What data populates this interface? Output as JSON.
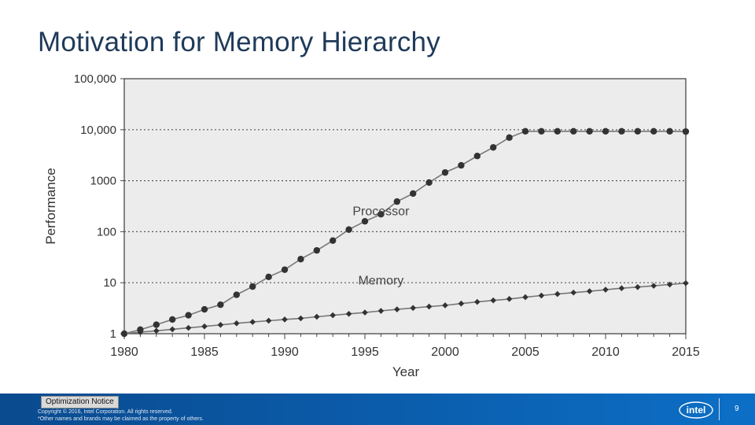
{
  "slide": {
    "title": "Motivation for Memory Hierarchy",
    "page_number": "9"
  },
  "footer": {
    "notice": "Optimization Notice",
    "copyright_line1": "Copyright © 2016, Intel Corporation. All rights reserved.",
    "copyright_line2": "*Other names and brands may be claimed as the property of others.",
    "logo_text": "intel"
  },
  "colors": {
    "footer_blue": "#0b5aa8",
    "title_color": "#1f3a5a",
    "plot_background": "#ececec",
    "series_color": "#333333"
  },
  "chart_data": {
    "type": "line",
    "xlabel": "Year",
    "ylabel": "Performance",
    "xlim": [
      1980,
      2015
    ],
    "ylim": [
      1,
      100000
    ],
    "yscale": "log",
    "grid": "horizontal dotted",
    "x_ticks": [
      1980,
      1985,
      1990,
      1995,
      2000,
      2005,
      2010,
      2015
    ],
    "y_ticks": [
      {
        "value": 1,
        "label": "1"
      },
      {
        "value": 10,
        "label": "10"
      },
      {
        "value": 100,
        "label": "100"
      },
      {
        "value": 1000,
        "label": "1000"
      },
      {
        "value": 10000,
        "label": "10,000"
      },
      {
        "value": 100000,
        "label": "100,000"
      }
    ],
    "series": [
      {
        "name": "Processor",
        "label_at": [
          1996,
          260
        ],
        "marker": "circle",
        "x": [
          1980,
          1981,
          1982,
          1983,
          1984,
          1985,
          1986,
          1987,
          1988,
          1989,
          1990,
          1991,
          1992,
          1993,
          1994,
          1995,
          1996,
          1997,
          1998,
          1999,
          2000,
          2001,
          2002,
          2003,
          2004,
          2005,
          2006,
          2007,
          2008,
          2009,
          2010,
          2011,
          2012,
          2013,
          2014,
          2015
        ],
        "y": [
          1,
          1.2,
          1.5,
          1.9,
          2.3,
          3.0,
          3.7,
          5.8,
          8.4,
          13,
          18,
          29,
          43,
          67,
          110,
          160,
          220,
          390,
          560,
          920,
          1450,
          2000,
          3050,
          4500,
          7000,
          9300,
          9300,
          9300,
          9300,
          9300,
          9300,
          9300,
          9300,
          9300,
          9300,
          9200
        ]
      },
      {
        "name": "Memory",
        "label_at": [
          1996,
          11.5
        ],
        "marker": "diamond",
        "x": [
          1980,
          1981,
          1982,
          1983,
          1984,
          1985,
          1986,
          1987,
          1988,
          1989,
          1990,
          1991,
          1992,
          1993,
          1994,
          1995,
          1996,
          1997,
          1998,
          1999,
          2000,
          2001,
          2002,
          2003,
          2004,
          2005,
          2006,
          2007,
          2008,
          2009,
          2010,
          2011,
          2012,
          2013,
          2014,
          2015
        ],
        "y": [
          1,
          1.07,
          1.14,
          1.22,
          1.3,
          1.39,
          1.49,
          1.6,
          1.7,
          1.8,
          1.9,
          2.0,
          2.15,
          2.3,
          2.45,
          2.6,
          2.8,
          3.0,
          3.2,
          3.4,
          3.6,
          3.9,
          4.2,
          4.5,
          4.8,
          5.2,
          5.6,
          6.0,
          6.4,
          6.8,
          7.3,
          7.8,
          8.2,
          8.7,
          9.2,
          9.8
        ]
      }
    ]
  }
}
